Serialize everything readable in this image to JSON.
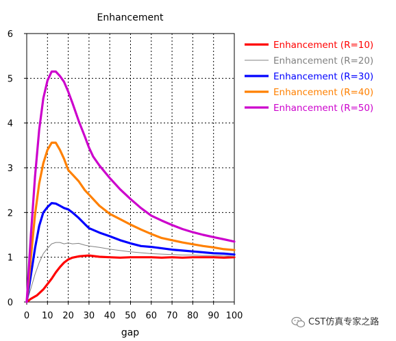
{
  "watermark": {
    "text": "CST仿真专家之路",
    "icon": "wechat-logo-icon"
  },
  "chart_data": {
    "type": "line",
    "title": "Enhancement",
    "xlabel": "gap",
    "ylabel": "",
    "xlim": [
      0,
      100
    ],
    "ylim": [
      0,
      6
    ],
    "xticks": [
      "0",
      "10",
      "20",
      "30",
      "40",
      "50",
      "60",
      "70",
      "80",
      "90",
      "100"
    ],
    "yticks": [
      "0",
      "1",
      "2",
      "3",
      "4",
      "5",
      "6"
    ],
    "grid": true,
    "legend_position": "right",
    "series": [
      {
        "name": "Enhancement (R=10)",
        "color": "#ff0000",
        "width": "thick",
        "points": [
          [
            0,
            0
          ],
          [
            2,
            0.07
          ],
          [
            5,
            0.15
          ],
          [
            8,
            0.28
          ],
          [
            10,
            0.4
          ],
          [
            12,
            0.52
          ],
          [
            14,
            0.66
          ],
          [
            16,
            0.78
          ],
          [
            18,
            0.88
          ],
          [
            20,
            0.95
          ],
          [
            22,
            0.99
          ],
          [
            25,
            1.02
          ],
          [
            30,
            1.04
          ],
          [
            35,
            1.01
          ],
          [
            40,
            1.0
          ],
          [
            45,
            0.99
          ],
          [
            50,
            1.0
          ],
          [
            55,
            1.0
          ],
          [
            60,
            1.0
          ],
          [
            65,
            0.99
          ],
          [
            70,
            1.0
          ],
          [
            75,
            0.99
          ],
          [
            80,
            1.0
          ],
          [
            85,
            1.0
          ],
          [
            90,
            1.0
          ],
          [
            95,
            0.99
          ],
          [
            100,
            1.0
          ]
        ]
      },
      {
        "name": "Enhancement (R=20)",
        "color": "#808080",
        "width": "thin",
        "points": [
          [
            0,
            0
          ],
          [
            2,
            0.3
          ],
          [
            4,
            0.62
          ],
          [
            6,
            0.88
          ],
          [
            8,
            1.08
          ],
          [
            10,
            1.2
          ],
          [
            12,
            1.3
          ],
          [
            14,
            1.33
          ],
          [
            16,
            1.33
          ],
          [
            18,
            1.3
          ],
          [
            20,
            1.32
          ],
          [
            22,
            1.3
          ],
          [
            25,
            1.31
          ],
          [
            28,
            1.27
          ],
          [
            30,
            1.25
          ],
          [
            35,
            1.22
          ],
          [
            40,
            1.18
          ],
          [
            45,
            1.15
          ],
          [
            50,
            1.12
          ],
          [
            55,
            1.1
          ],
          [
            60,
            1.08
          ],
          [
            65,
            1.07
          ],
          [
            70,
            1.06
          ],
          [
            75,
            1.05
          ],
          [
            80,
            1.05
          ],
          [
            85,
            1.04
          ],
          [
            90,
            1.04
          ],
          [
            95,
            1.03
          ],
          [
            100,
            1.02
          ]
        ]
      },
      {
        "name": "Enhancement (R=30)",
        "color": "#0000ff",
        "width": "thick",
        "points": [
          [
            0,
            0
          ],
          [
            2,
            0.6
          ],
          [
            4,
            1.2
          ],
          [
            6,
            1.7
          ],
          [
            8,
            2.0
          ],
          [
            10,
            2.12
          ],
          [
            12,
            2.21
          ],
          [
            14,
            2.2
          ],
          [
            16,
            2.15
          ],
          [
            18,
            2.1
          ],
          [
            20,
            2.07
          ],
          [
            22,
            2.0
          ],
          [
            25,
            1.88
          ],
          [
            28,
            1.74
          ],
          [
            30,
            1.65
          ],
          [
            35,
            1.55
          ],
          [
            40,
            1.47
          ],
          [
            45,
            1.38
          ],
          [
            50,
            1.31
          ],
          [
            55,
            1.25
          ],
          [
            60,
            1.23
          ],
          [
            65,
            1.2
          ],
          [
            70,
            1.17
          ],
          [
            75,
            1.15
          ],
          [
            80,
            1.13
          ],
          [
            85,
            1.11
          ],
          [
            90,
            1.09
          ],
          [
            95,
            1.08
          ],
          [
            100,
            1.06
          ]
        ]
      },
      {
        "name": "Enhancement (R=40)",
        "color": "#ff8000",
        "width": "thick",
        "points": [
          [
            0,
            0
          ],
          [
            2,
            1.0
          ],
          [
            4,
            1.95
          ],
          [
            6,
            2.65
          ],
          [
            8,
            3.1
          ],
          [
            10,
            3.4
          ],
          [
            12,
            3.56
          ],
          [
            14,
            3.56
          ],
          [
            16,
            3.4
          ],
          [
            18,
            3.2
          ],
          [
            20,
            2.95
          ],
          [
            22,
            2.85
          ],
          [
            25,
            2.7
          ],
          [
            28,
            2.5
          ],
          [
            30,
            2.4
          ],
          [
            35,
            2.15
          ],
          [
            40,
            1.97
          ],
          [
            45,
            1.85
          ],
          [
            50,
            1.73
          ],
          [
            55,
            1.62
          ],
          [
            60,
            1.52
          ],
          [
            65,
            1.43
          ],
          [
            70,
            1.38
          ],
          [
            75,
            1.33
          ],
          [
            80,
            1.29
          ],
          [
            85,
            1.25
          ],
          [
            90,
            1.22
          ],
          [
            95,
            1.18
          ],
          [
            100,
            1.16
          ]
        ]
      },
      {
        "name": "Enhancement (R=50)",
        "color": "#cc00cc",
        "width": "thick",
        "points": [
          [
            0,
            0
          ],
          [
            2,
            1.5
          ],
          [
            4,
            2.8
          ],
          [
            6,
            3.85
          ],
          [
            8,
            4.55
          ],
          [
            10,
            4.95
          ],
          [
            12,
            5.15
          ],
          [
            14,
            5.15
          ],
          [
            16,
            5.05
          ],
          [
            18,
            4.92
          ],
          [
            20,
            4.7
          ],
          [
            22,
            4.45
          ],
          [
            25,
            4.05
          ],
          [
            28,
            3.7
          ],
          [
            30,
            3.45
          ],
          [
            32,
            3.25
          ],
          [
            35,
            3.05
          ],
          [
            40,
            2.77
          ],
          [
            45,
            2.52
          ],
          [
            50,
            2.3
          ],
          [
            55,
            2.1
          ],
          [
            60,
            1.93
          ],
          [
            65,
            1.82
          ],
          [
            70,
            1.72
          ],
          [
            75,
            1.63
          ],
          [
            80,
            1.56
          ],
          [
            85,
            1.5
          ],
          [
            90,
            1.45
          ],
          [
            95,
            1.4
          ],
          [
            100,
            1.35
          ]
        ]
      }
    ]
  }
}
